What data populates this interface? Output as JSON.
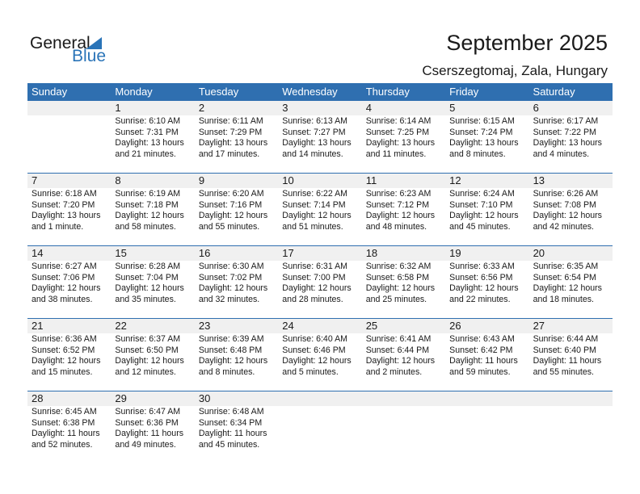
{
  "logo": {
    "general": "General",
    "blue": "Blue"
  },
  "title": "September 2025",
  "location": "Cserszegtomaj, Zala, Hungary",
  "weekdays": [
    "Sunday",
    "Monday",
    "Tuesday",
    "Wednesday",
    "Thursday",
    "Friday",
    "Saturday"
  ],
  "colors": {
    "header": "#2f6fb0",
    "strip": "#f0f0f0",
    "logo_blue": "#2a74b8"
  },
  "weeks": [
    [
      null,
      {
        "day": "1",
        "sunrise": "Sunrise: 6:10 AM",
        "sunset": "Sunset: 7:31 PM",
        "daylight1": "Daylight: 13 hours",
        "daylight2": "and 21 minutes."
      },
      {
        "day": "2",
        "sunrise": "Sunrise: 6:11 AM",
        "sunset": "Sunset: 7:29 PM",
        "daylight1": "Daylight: 13 hours",
        "daylight2": "and 17 minutes."
      },
      {
        "day": "3",
        "sunrise": "Sunrise: 6:13 AM",
        "sunset": "Sunset: 7:27 PM",
        "daylight1": "Daylight: 13 hours",
        "daylight2": "and 14 minutes."
      },
      {
        "day": "4",
        "sunrise": "Sunrise: 6:14 AM",
        "sunset": "Sunset: 7:25 PM",
        "daylight1": "Daylight: 13 hours",
        "daylight2": "and 11 minutes."
      },
      {
        "day": "5",
        "sunrise": "Sunrise: 6:15 AM",
        "sunset": "Sunset: 7:24 PM",
        "daylight1": "Daylight: 13 hours",
        "daylight2": "and 8 minutes."
      },
      {
        "day": "6",
        "sunrise": "Sunrise: 6:17 AM",
        "sunset": "Sunset: 7:22 PM",
        "daylight1": "Daylight: 13 hours",
        "daylight2": "and 4 minutes."
      }
    ],
    [
      {
        "day": "7",
        "sunrise": "Sunrise: 6:18 AM",
        "sunset": "Sunset: 7:20 PM",
        "daylight1": "Daylight: 13 hours",
        "daylight2": "and 1 minute."
      },
      {
        "day": "8",
        "sunrise": "Sunrise: 6:19 AM",
        "sunset": "Sunset: 7:18 PM",
        "daylight1": "Daylight: 12 hours",
        "daylight2": "and 58 minutes."
      },
      {
        "day": "9",
        "sunrise": "Sunrise: 6:20 AM",
        "sunset": "Sunset: 7:16 PM",
        "daylight1": "Daylight: 12 hours",
        "daylight2": "and 55 minutes."
      },
      {
        "day": "10",
        "sunrise": "Sunrise: 6:22 AM",
        "sunset": "Sunset: 7:14 PM",
        "daylight1": "Daylight: 12 hours",
        "daylight2": "and 51 minutes."
      },
      {
        "day": "11",
        "sunrise": "Sunrise: 6:23 AM",
        "sunset": "Sunset: 7:12 PM",
        "daylight1": "Daylight: 12 hours",
        "daylight2": "and 48 minutes."
      },
      {
        "day": "12",
        "sunrise": "Sunrise: 6:24 AM",
        "sunset": "Sunset: 7:10 PM",
        "daylight1": "Daylight: 12 hours",
        "daylight2": "and 45 minutes."
      },
      {
        "day": "13",
        "sunrise": "Sunrise: 6:26 AM",
        "sunset": "Sunset: 7:08 PM",
        "daylight1": "Daylight: 12 hours",
        "daylight2": "and 42 minutes."
      }
    ],
    [
      {
        "day": "14",
        "sunrise": "Sunrise: 6:27 AM",
        "sunset": "Sunset: 7:06 PM",
        "daylight1": "Daylight: 12 hours",
        "daylight2": "and 38 minutes."
      },
      {
        "day": "15",
        "sunrise": "Sunrise: 6:28 AM",
        "sunset": "Sunset: 7:04 PM",
        "daylight1": "Daylight: 12 hours",
        "daylight2": "and 35 minutes."
      },
      {
        "day": "16",
        "sunrise": "Sunrise: 6:30 AM",
        "sunset": "Sunset: 7:02 PM",
        "daylight1": "Daylight: 12 hours",
        "daylight2": "and 32 minutes."
      },
      {
        "day": "17",
        "sunrise": "Sunrise: 6:31 AM",
        "sunset": "Sunset: 7:00 PM",
        "daylight1": "Daylight: 12 hours",
        "daylight2": "and 28 minutes."
      },
      {
        "day": "18",
        "sunrise": "Sunrise: 6:32 AM",
        "sunset": "Sunset: 6:58 PM",
        "daylight1": "Daylight: 12 hours",
        "daylight2": "and 25 minutes."
      },
      {
        "day": "19",
        "sunrise": "Sunrise: 6:33 AM",
        "sunset": "Sunset: 6:56 PM",
        "daylight1": "Daylight: 12 hours",
        "daylight2": "and 22 minutes."
      },
      {
        "day": "20",
        "sunrise": "Sunrise: 6:35 AM",
        "sunset": "Sunset: 6:54 PM",
        "daylight1": "Daylight: 12 hours",
        "daylight2": "and 18 minutes."
      }
    ],
    [
      {
        "day": "21",
        "sunrise": "Sunrise: 6:36 AM",
        "sunset": "Sunset: 6:52 PM",
        "daylight1": "Daylight: 12 hours",
        "daylight2": "and 15 minutes."
      },
      {
        "day": "22",
        "sunrise": "Sunrise: 6:37 AM",
        "sunset": "Sunset: 6:50 PM",
        "daylight1": "Daylight: 12 hours",
        "daylight2": "and 12 minutes."
      },
      {
        "day": "23",
        "sunrise": "Sunrise: 6:39 AM",
        "sunset": "Sunset: 6:48 PM",
        "daylight1": "Daylight: 12 hours",
        "daylight2": "and 8 minutes."
      },
      {
        "day": "24",
        "sunrise": "Sunrise: 6:40 AM",
        "sunset": "Sunset: 6:46 PM",
        "daylight1": "Daylight: 12 hours",
        "daylight2": "and 5 minutes."
      },
      {
        "day": "25",
        "sunrise": "Sunrise: 6:41 AM",
        "sunset": "Sunset: 6:44 PM",
        "daylight1": "Daylight: 12 hours",
        "daylight2": "and 2 minutes."
      },
      {
        "day": "26",
        "sunrise": "Sunrise: 6:43 AM",
        "sunset": "Sunset: 6:42 PM",
        "daylight1": "Daylight: 11 hours",
        "daylight2": "and 59 minutes."
      },
      {
        "day": "27",
        "sunrise": "Sunrise: 6:44 AM",
        "sunset": "Sunset: 6:40 PM",
        "daylight1": "Daylight: 11 hours",
        "daylight2": "and 55 minutes."
      }
    ],
    [
      {
        "day": "28",
        "sunrise": "Sunrise: 6:45 AM",
        "sunset": "Sunset: 6:38 PM",
        "daylight1": "Daylight: 11 hours",
        "daylight2": "and 52 minutes."
      },
      {
        "day": "29",
        "sunrise": "Sunrise: 6:47 AM",
        "sunset": "Sunset: 6:36 PM",
        "daylight1": "Daylight: 11 hours",
        "daylight2": "and 49 minutes."
      },
      {
        "day": "30",
        "sunrise": "Sunrise: 6:48 AM",
        "sunset": "Sunset: 6:34 PM",
        "daylight1": "Daylight: 11 hours",
        "daylight2": "and 45 minutes."
      },
      null,
      null,
      null,
      null
    ]
  ]
}
